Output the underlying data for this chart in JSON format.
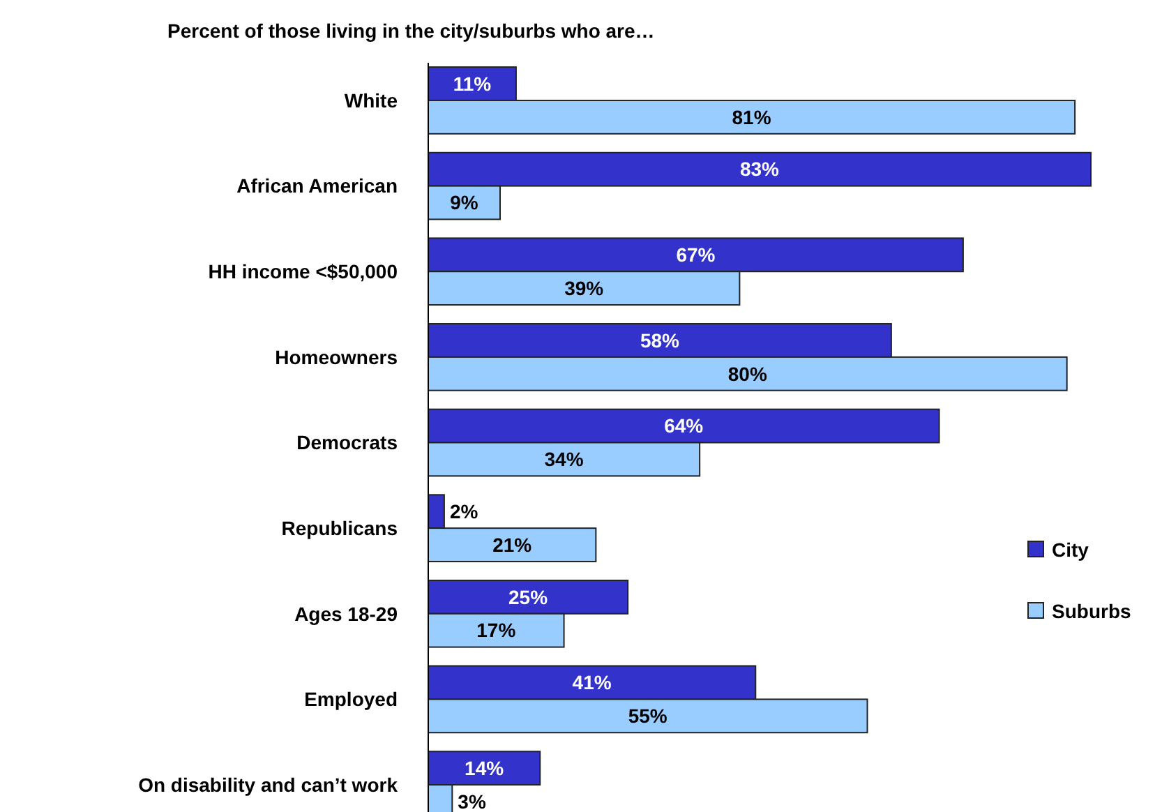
{
  "chart_data": {
    "type": "bar",
    "orientation": "horizontal",
    "title": "Percent of those living in the city/suburbs who are…",
    "categories": [
      "White",
      "African American",
      "HH income <$50,000",
      "Homeowners",
      "Democrats",
      "Republicans",
      "Ages 18-29",
      "Employed",
      "On disability and can’t work"
    ],
    "series": [
      {
        "name": "City",
        "color": "#3333cc",
        "values": [
          11,
          83,
          67,
          58,
          64,
          2,
          25,
          41,
          14
        ],
        "value_labels": [
          "11%",
          "83%",
          "67%",
          "58%",
          "64%",
          "2%",
          "25%",
          "41%",
          "14%"
        ]
      },
      {
        "name": "Suburbs",
        "color": "#99ccff",
        "values": [
          81,
          9,
          39,
          80,
          34,
          21,
          17,
          55,
          3
        ],
        "value_labels": [
          "81%",
          "9%",
          "39%",
          "80%",
          "34%",
          "21%",
          "17%",
          "55%",
          "3%"
        ]
      }
    ],
    "legend": "right",
    "grid": false
  }
}
